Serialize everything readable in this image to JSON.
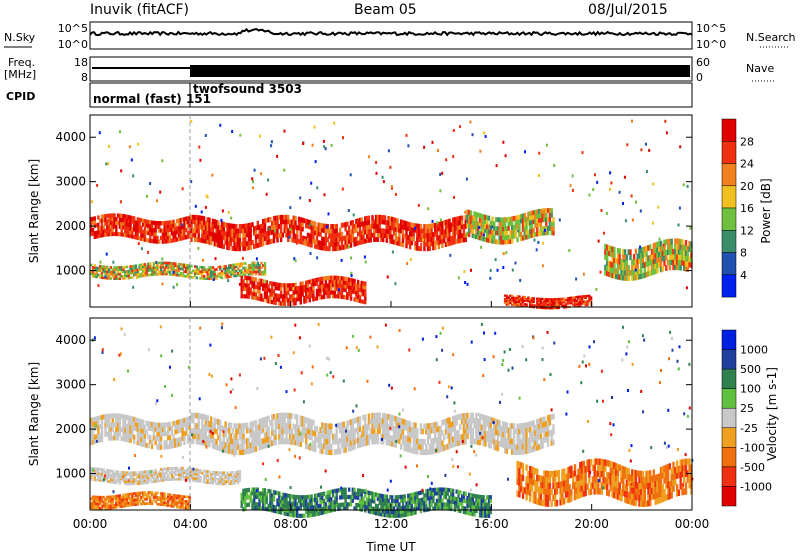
{
  "header": {
    "station": "Inuvik (fitACF)",
    "beam": "Beam 05",
    "date": "08/Jul/2015"
  },
  "noise_panel": {
    "left_label": "N.Sky",
    "right_label": "N.Search",
    "left_ticks": [
      "10^5",
      "10^0"
    ],
    "right_ticks": [
      "10^5",
      "10^0"
    ]
  },
  "freq_panel": {
    "left_label_line1": "Freq.",
    "left_label_line2": "[MHz]",
    "right_label": "Nave",
    "left_ticks": [
      "18",
      "8"
    ],
    "right_ticks": [
      "60",
      "0"
    ]
  },
  "cpid_panel": {
    "label": "CPID",
    "mode1": "normal (fast) 151",
    "mode2": "twofsound 3503",
    "mode_switch_hour": 4.0
  },
  "colors": {
    "power_scale": [
      "#0020f0",
      "#2050b0",
      "#3a8f6a",
      "#70c040",
      "#f0c020",
      "#f08020",
      "#f03010",
      "#e00000"
    ],
    "velocity_scale": [
      "#e00000",
      "#f03010",
      "#f07010",
      "#f0a020",
      "#c8c8c8",
      "#60c040",
      "#308050",
      "#2040a0",
      "#0020e0"
    ]
  },
  "chart_data": [
    {
      "type": "heatmap",
      "name_panel": "power",
      "xlabel": "",
      "ylabel": "Slant Range [km]",
      "x_range_hours": [
        0,
        24
      ],
      "ylim": [
        180,
        4500
      ],
      "yticks": [
        "1000",
        "2000",
        "3000",
        "4000"
      ],
      "colorbar_label": "Power [dB]",
      "colorbar_ticks": [
        "4",
        "8",
        "12",
        "16",
        "20",
        "24",
        "28"
      ],
      "bands": [
        {
          "x_start": 0.0,
          "x_end": 4.0,
          "y_center": 1950,
          "y_half_width": 250,
          "level": "high"
        },
        {
          "x_start": 4.0,
          "x_end": 15.0,
          "y_center": 1850,
          "y_half_width": 300,
          "level": "high"
        },
        {
          "x_start": 15.0,
          "x_end": 18.5,
          "y_center": 2000,
          "y_half_width": 300,
          "level": "medium"
        },
        {
          "x_start": 0.0,
          "x_end": 7.0,
          "y_center": 1000,
          "y_half_width": 150,
          "level": "medium"
        },
        {
          "x_start": 6.0,
          "x_end": 11.0,
          "y_center": 550,
          "y_half_width": 250,
          "level": "high"
        },
        {
          "x_start": 16.5,
          "x_end": 20.0,
          "y_center": 300,
          "y_half_width": 120,
          "level": "high"
        },
        {
          "x_start": 20.5,
          "x_end": 24.0,
          "y_center": 1250,
          "y_half_width": 350,
          "level": "medium"
        }
      ]
    },
    {
      "type": "heatmap",
      "name_panel": "velocity",
      "xlabel": "Time UT",
      "ylabel": "Slant Range [km]",
      "x_range_hours": [
        0,
        24
      ],
      "ylim": [
        180,
        4500
      ],
      "yticks": [
        "1000",
        "2000",
        "3000",
        "4000"
      ],
      "xticks": [
        "00:00",
        "04:00",
        "08:00",
        "12:00",
        "16:00",
        "20:00",
        "00:00"
      ],
      "colorbar_label": "Velocity [m s-1]",
      "colorbar_ticks": [
        "1000",
        "500",
        "100",
        "25",
        "-25",
        "-100",
        "-500",
        "-1000"
      ],
      "bands": [
        {
          "x_start": 0.0,
          "x_end": 4.0,
          "y_center": 1950,
          "y_half_width": 300,
          "level": "ground"
        },
        {
          "x_start": 4.0,
          "x_end": 18.5,
          "y_center": 1900,
          "y_half_width": 350,
          "level": "ground"
        },
        {
          "x_start": 0.0,
          "x_end": 6.0,
          "y_center": 950,
          "y_half_width": 150,
          "level": "ground"
        },
        {
          "x_start": 6.0,
          "x_end": 16.0,
          "y_center": 350,
          "y_half_width": 250,
          "level": "positive"
        },
        {
          "x_start": 0.0,
          "x_end": 4.0,
          "y_center": 400,
          "y_half_width": 150,
          "level": "negative"
        },
        {
          "x_start": 17.0,
          "x_end": 24.0,
          "y_center": 800,
          "y_half_width": 400,
          "level": "negative"
        }
      ]
    }
  ]
}
